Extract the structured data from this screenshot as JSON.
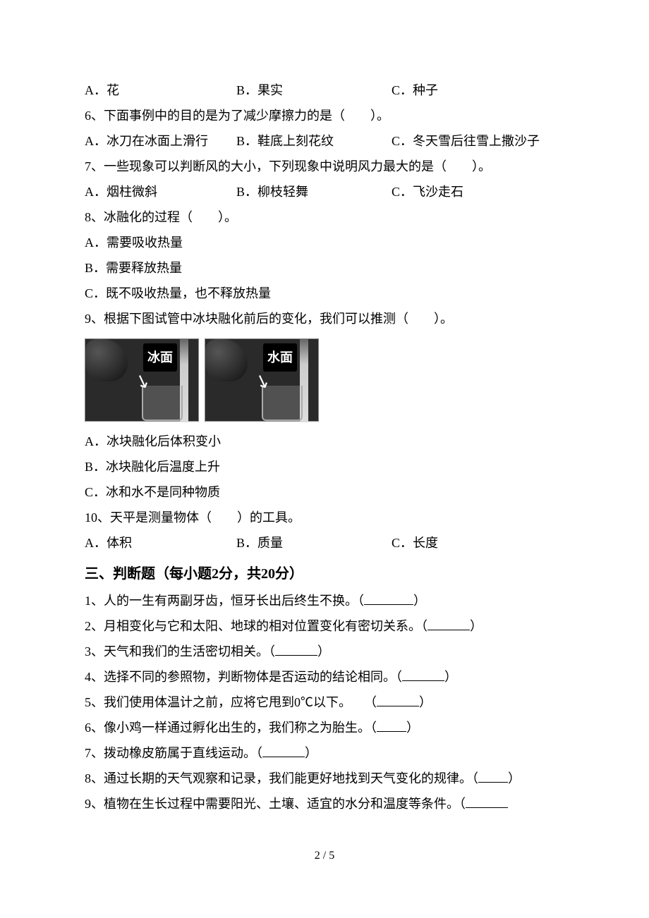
{
  "q5_opts": {
    "a": "A．花",
    "b": "B．果实",
    "c": "C．种子"
  },
  "q6": "6、下面事例中的目的是为了减少摩擦力的是（　　）。",
  "q6_opts": {
    "a": "A．冰刀在冰面上滑行",
    "b": "B．鞋底上刻花纹",
    "c": "C．冬天雪后往雪上撒沙子"
  },
  "q7": "7、一些现象可以判断风的大小，下列现象中说明风力最大的是（　　）。",
  "q7_opts": {
    "a": "A．烟柱微斜",
    "b": "B．柳枝轻舞",
    "c": "C．飞沙走石"
  },
  "q8": "8、冰融化的过程（　　）。",
  "q8_a": "A．需要吸收热量",
  "q8_b": "B．需要释放热量",
  "q8_c": "C．既不吸收热量，也不释放热量",
  "q9": "9、根据下图试管中冰块融化前后的变化，我们可以推测（　　）。",
  "img1_label": "冰面",
  "img2_label": "水面",
  "q9_a": "A．冰块融化后体积变小",
  "q9_b": "B．冰块融化后温度上升",
  "q9_c": "C．冰和水不是同种物质",
  "q10": "10、天平是测量物体（　　）的工具。",
  "q10_opts": {
    "a": "A．体积",
    "b": "B．质量",
    "c": "C．长度"
  },
  "section3": "三、判断题（每小题2分，共20分）",
  "j1_a": "1、人的一生有两副牙齿，恒牙长出后终生不换。（",
  "j1_b": "）",
  "j2_a": "2、月相变化与它和太阳、地球的相对位置变化有密切关系。（",
  "j2_b": "）",
  "j3_a": "3、天气和我们的生活密切相关。（",
  "j3_b": "）",
  "j4_a": "4、选择不同的参照物，判断物体是否运动的结论相同。（",
  "j4_b": "）",
  "j5_a": "5、我们使用体温计之前，应将它甩到0℃以下。　　（",
  "j5_b": "）",
  "j6_a": "6、像小鸡一样通过孵化出生的，我们称之为胎生。（",
  "j6_b": "）",
  "j7_a": "7、拨动橡皮筋属于直线运动。（",
  "j7_b": "）",
  "j8_a": "8、通过长期的天气观察和记录，我们能更好地找到天气变化的规律。（",
  "j8_b": "）",
  "j9_a": "9、植物在生长过程中需要阳光、土壤、适宜的水分和温度等条件。（",
  "footer": "2 / 5"
}
